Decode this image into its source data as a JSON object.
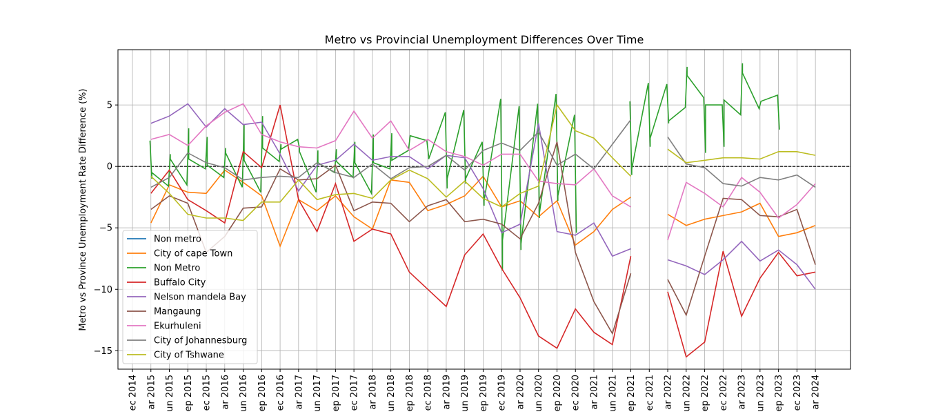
{
  "chart_data": {
    "type": "line",
    "title": "Metro vs Provincial Unemployment Differences Over Time",
    "xlabel": "",
    "ylabel": "Metro vs Province Unemployment Rate Difference (%)",
    "ylim": [
      -16.5,
      9.5
    ],
    "yticks": [
      -15,
      -10,
      -5,
      0,
      5
    ],
    "ytick_labels": [
      "−15",
      "−10",
      "−5",
      "0",
      "5"
    ],
    "grid": true,
    "zero_line": true,
    "legend_position": "lower-left",
    "categories": [
      "ec 2014",
      "ar 2015",
      "un 2015",
      "ep 2015",
      "ec 2015",
      "ar 2016",
      "un 2016",
      "ep 2016",
      "ec 2016",
      "ar 2017",
      "un 2017",
      "ep 2017",
      "ec 2017",
      "ar 2018",
      "un 2018",
      "ep 2018",
      "ec 2018",
      "ar 2019",
      "un 2019",
      "ep 2019",
      "ec 2019",
      "ar 2020",
      "un 2020",
      "ep 2020",
      "ec 2020",
      "ar 2021",
      "un 2021",
      "ep 2021",
      "ec 2021",
      "ar 2022",
      "un 2022",
      "ep 2022",
      "ec 2022",
      "ar 2023",
      "un 2023",
      "ep 2023",
      "ec 2023",
      "ar 2024"
    ],
    "series": [
      {
        "name": "Non metro",
        "color": "#1f77b4",
        "values": [
          null,
          null,
          null,
          null,
          null,
          null,
          null,
          null,
          null,
          null,
          null,
          null,
          null,
          null,
          null,
          null,
          null,
          null,
          null,
          null,
          null,
          null,
          null,
          null,
          null,
          null,
          null,
          null,
          null,
          null,
          null,
          null,
          null,
          null,
          null,
          null,
          null,
          null
        ]
      },
      {
        "name": "City of cape Town",
        "color": "#ff7f0e",
        "values": [
          null,
          -4.6,
          -1.5,
          -2.1,
          -2.2,
          -0.3,
          -1.3,
          -2.4,
          -6.5,
          -2.7,
          -3.6,
          -2.4,
          -4.1,
          -5.1,
          -1.1,
          -1.3,
          -3.6,
          -3.1,
          -2.4,
          -0.8,
          -3.3,
          -2.8,
          -4.1,
          -2.8,
          -6.4,
          -5.3,
          -3.5,
          -2.5,
          null,
          -3.9,
          -4.8,
          -4.3,
          -4.0,
          -3.7,
          -3.0,
          -5.7,
          -5.4,
          -4.8
        ]
      },
      {
        "name": "Non Metro",
        "color": "#2ca02c",
        "segments": [
          [
            0.95,
            2.1,
            1.05,
            -1.0,
            1.05,
            -0.5,
            1.95,
            -1.6,
            2.05,
            1.0,
            2.05,
            0.6,
            2.95,
            -1.5,
            3.05,
            3.1,
            3.05,
            0.6,
            3.95,
            -0.2,
            4.05,
            2.4,
            4.05,
            0.1,
            4.95,
            -0.9,
            5.05,
            1.5,
            5.05,
            1.1,
            5.95,
            -1.7,
            6.05,
            3.4,
            6.05,
            0.5,
            6.95,
            -2.1,
            7.05,
            4.1,
            7.05,
            1.5,
            7.95,
            0.4,
            8.05,
            1.8,
            8.05,
            1.4,
            8.95,
            2.2,
            9.05,
            1.5,
            9.05,
            1.2,
            9.95,
            -2.1,
            10.05,
            1.3,
            10.05,
            0.3,
            10.95,
            -0.5,
            11.05,
            1.4,
            11.05,
            0.4,
            11.95,
            -0.9,
            12.05,
            2.0,
            12.05,
            0.3,
            12.95,
            -2.2,
            13.05,
            2.6,
            13.05,
            0.3,
            13.95,
            -0.2,
            14.05,
            2.7,
            14.05,
            0.5,
            14.95,
            1.3,
            15.05,
            2.5,
            15.05,
            2.5,
            15.95,
            2.1,
            16.05,
            0.8,
            16.05,
            0.6,
            16.95,
            4.4,
            17.05,
            -1.8,
            17.05,
            -1.0,
            17.95,
            4.6,
            18.05,
            -1.4,
            18.05,
            -1.0,
            18.95,
            2.0,
            19.05,
            -3.2,
            19.05,
            -2.8,
            19.95,
            5.5,
            20.05,
            -8.5,
            20.05,
            -6.0,
            20.95,
            4.9,
            21.05,
            -6.8,
            21.05,
            -6.3,
            21.95,
            5.1,
            22.05,
            -4.2,
            22.05,
            -3.8,
            22.95,
            5.9,
            23.05,
            -2.8,
            23.05,
            -2.4,
            23.95,
            4.2,
            24.05,
            -5.4
          ]
        ],
        "segments2": [
          [
            26.95,
            5.3,
            27.05,
            -0.7,
            27.05,
            -0.2,
            27.95,
            6.8,
            28.05,
            1.6,
            28.05,
            2.3,
            28.95,
            6.7,
            29.05,
            3.5,
            29.05,
            3.7,
            29.95,
            4.8,
            30.05,
            8.1,
            30.05,
            7.4,
            30.95,
            5.6,
            31.05,
            1.1,
            31.05,
            5.0,
            31.95,
            5.0,
            32.05,
            1.6,
            32.05,
            5.4,
            32.95,
            4.2,
            33.05,
            8.4,
            33.05,
            7.6,
            33.95,
            4.7,
            34.05,
            5.3,
            34.95,
            5.8,
            35.05,
            3.0
          ]
        ]
      },
      {
        "name": "Buffalo City",
        "color": "#d62728",
        "values": [
          null,
          -2.2,
          -0.3,
          -2.7,
          -3.6,
          -4.6,
          1.2,
          -0.1,
          5.0,
          -2.7,
          -5.3,
          -1.4,
          -6.1,
          -5.1,
          -5.5,
          -8.6,
          -10.0,
          -11.4,
          -7.2,
          -5.5,
          -8.3,
          -10.7,
          -13.8,
          -14.8,
          -11.6,
          -13.5,
          -14.5,
          -7.3,
          null,
          -10.2,
          -15.5,
          -14.3,
          -6.9,
          -12.2,
          -9.1,
          -7.0,
          -8.9,
          -8.6
        ]
      },
      {
        "name": "Nelson mandela Bay",
        "color": "#9467bd",
        "values": [
          null,
          3.5,
          4.1,
          5.1,
          3.2,
          4.7,
          3.4,
          3.6,
          1.0,
          -2.0,
          0.1,
          0.5,
          1.8,
          0.5,
          0.8,
          0.8,
          -0.2,
          0.9,
          0.7,
          -1.8,
          -5.4,
          -4.7,
          3.5,
          -5.3,
          -5.6,
          -4.6,
          -7.3,
          -6.7,
          null,
          -7.6,
          -8.1,
          -8.8,
          -7.6,
          -6.1,
          -7.7,
          -6.8,
          -8.0,
          -10.0
        ]
      },
      {
        "name": "Mangaung",
        "color": "#8c564b",
        "values": [
          null,
          -3.5,
          -2.4,
          -3.0,
          -7.0,
          -5.7,
          -3.4,
          -3.3,
          -0.2,
          -1.1,
          -1.0,
          0.1,
          -3.6,
          -2.9,
          -3.0,
          -4.5,
          -3.2,
          -2.7,
          -4.5,
          -4.3,
          -4.7,
          -5.9,
          -3.0,
          2.0,
          -7.0,
          -11.0,
          -13.6,
          -8.7,
          null,
          -9.2,
          -12.1,
          -7.3,
          -2.6,
          -2.7,
          -4.0,
          -4.1,
          -3.5,
          -8.0
        ]
      },
      {
        "name": "Ekurhuleni",
        "color": "#e377c2",
        "values": [
          null,
          2.2,
          2.6,
          1.7,
          3.3,
          4.4,
          5.1,
          2.6,
          2.0,
          1.6,
          1.5,
          2.1,
          4.5,
          2.3,
          3.7,
          1.3,
          2.2,
          1.2,
          0.8,
          0.1,
          1.0,
          1.0,
          -1.2,
          -1.4,
          -1.5,
          -0.2,
          -2.4,
          -3.3,
          null,
          -6.0,
          -1.3,
          -2.2,
          -3.3,
          -0.9,
          -2.1,
          -4.2,
          -3.1,
          -1.4
        ]
      },
      {
        "name": "City of Johannesburg",
        "color": "#7f7f7f",
        "values": [
          null,
          -1.7,
          -0.9,
          1.1,
          0.3,
          -0.1,
          -1.1,
          -0.9,
          -0.8,
          -0.9,
          0.3,
          -0.5,
          -0.9,
          0.2,
          -1.0,
          -0.1,
          0.0,
          0.9,
          -0.3,
          1.3,
          1.9,
          1.3,
          2.8,
          0.1,
          1.0,
          -0.2,
          1.8,
          3.8,
          null,
          2.4,
          0.2,
          -0.1,
          -1.4,
          -1.6,
          -0.9,
          -1.1,
          -0.7,
          -1.7
        ]
      },
      {
        "name": "City of Tshwane",
        "color": "#bcbd22",
        "values": [
          null,
          -0.8,
          -2.2,
          -3.9,
          -4.2,
          -4.2,
          -4.4,
          -2.9,
          -2.9,
          -1.1,
          -2.7,
          -2.3,
          -2.2,
          -2.6,
          -1.1,
          -0.3,
          -1.0,
          -2.5,
          -1.2,
          -2.6,
          -3.3,
          -2.2,
          -1.6,
          5.0,
          2.9,
          2.3,
          0.7,
          -0.8,
          null,
          1.4,
          0.3,
          0.5,
          0.7,
          0.7,
          0.6,
          1.2,
          1.2,
          0.9
        ]
      }
    ]
  }
}
